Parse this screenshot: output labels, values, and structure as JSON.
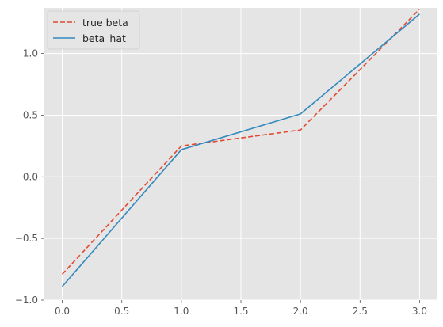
{
  "chart_data": {
    "type": "line",
    "title": "",
    "xlabel": "",
    "ylabel": "",
    "xlim": [
      -0.15,
      3.15
    ],
    "ylim": [
      -1.0,
      1.37
    ],
    "x_ticks": [
      0.0,
      0.5,
      1.0,
      1.5,
      2.0,
      2.5,
      3.0
    ],
    "x_tick_labels": [
      "0.0",
      "0.5",
      "1.0",
      "1.5",
      "2.0",
      "2.5",
      "3.0"
    ],
    "y_ticks": [
      -1.0,
      -0.5,
      0.0,
      0.5,
      1.0
    ],
    "y_tick_labels": [
      "−1.0",
      "−0.5",
      "0.0",
      "0.5",
      "1.0"
    ],
    "grid": true,
    "legend_position": "top-left",
    "x": [
      0,
      1,
      2,
      3
    ],
    "series": [
      {
        "name": "true beta",
        "values": [
          -0.79,
          0.25,
          0.38,
          1.36
        ],
        "style": "dashed",
        "color": "#E24A33"
      },
      {
        "name": "beta_hat",
        "values": [
          -0.89,
          0.22,
          0.51,
          1.32
        ],
        "style": "solid",
        "color": "#348ABD"
      }
    ]
  },
  "theme": {
    "plot_background": "#E5E5E5",
    "grid_color": "#FFFFFF",
    "text_color": "#555555"
  }
}
